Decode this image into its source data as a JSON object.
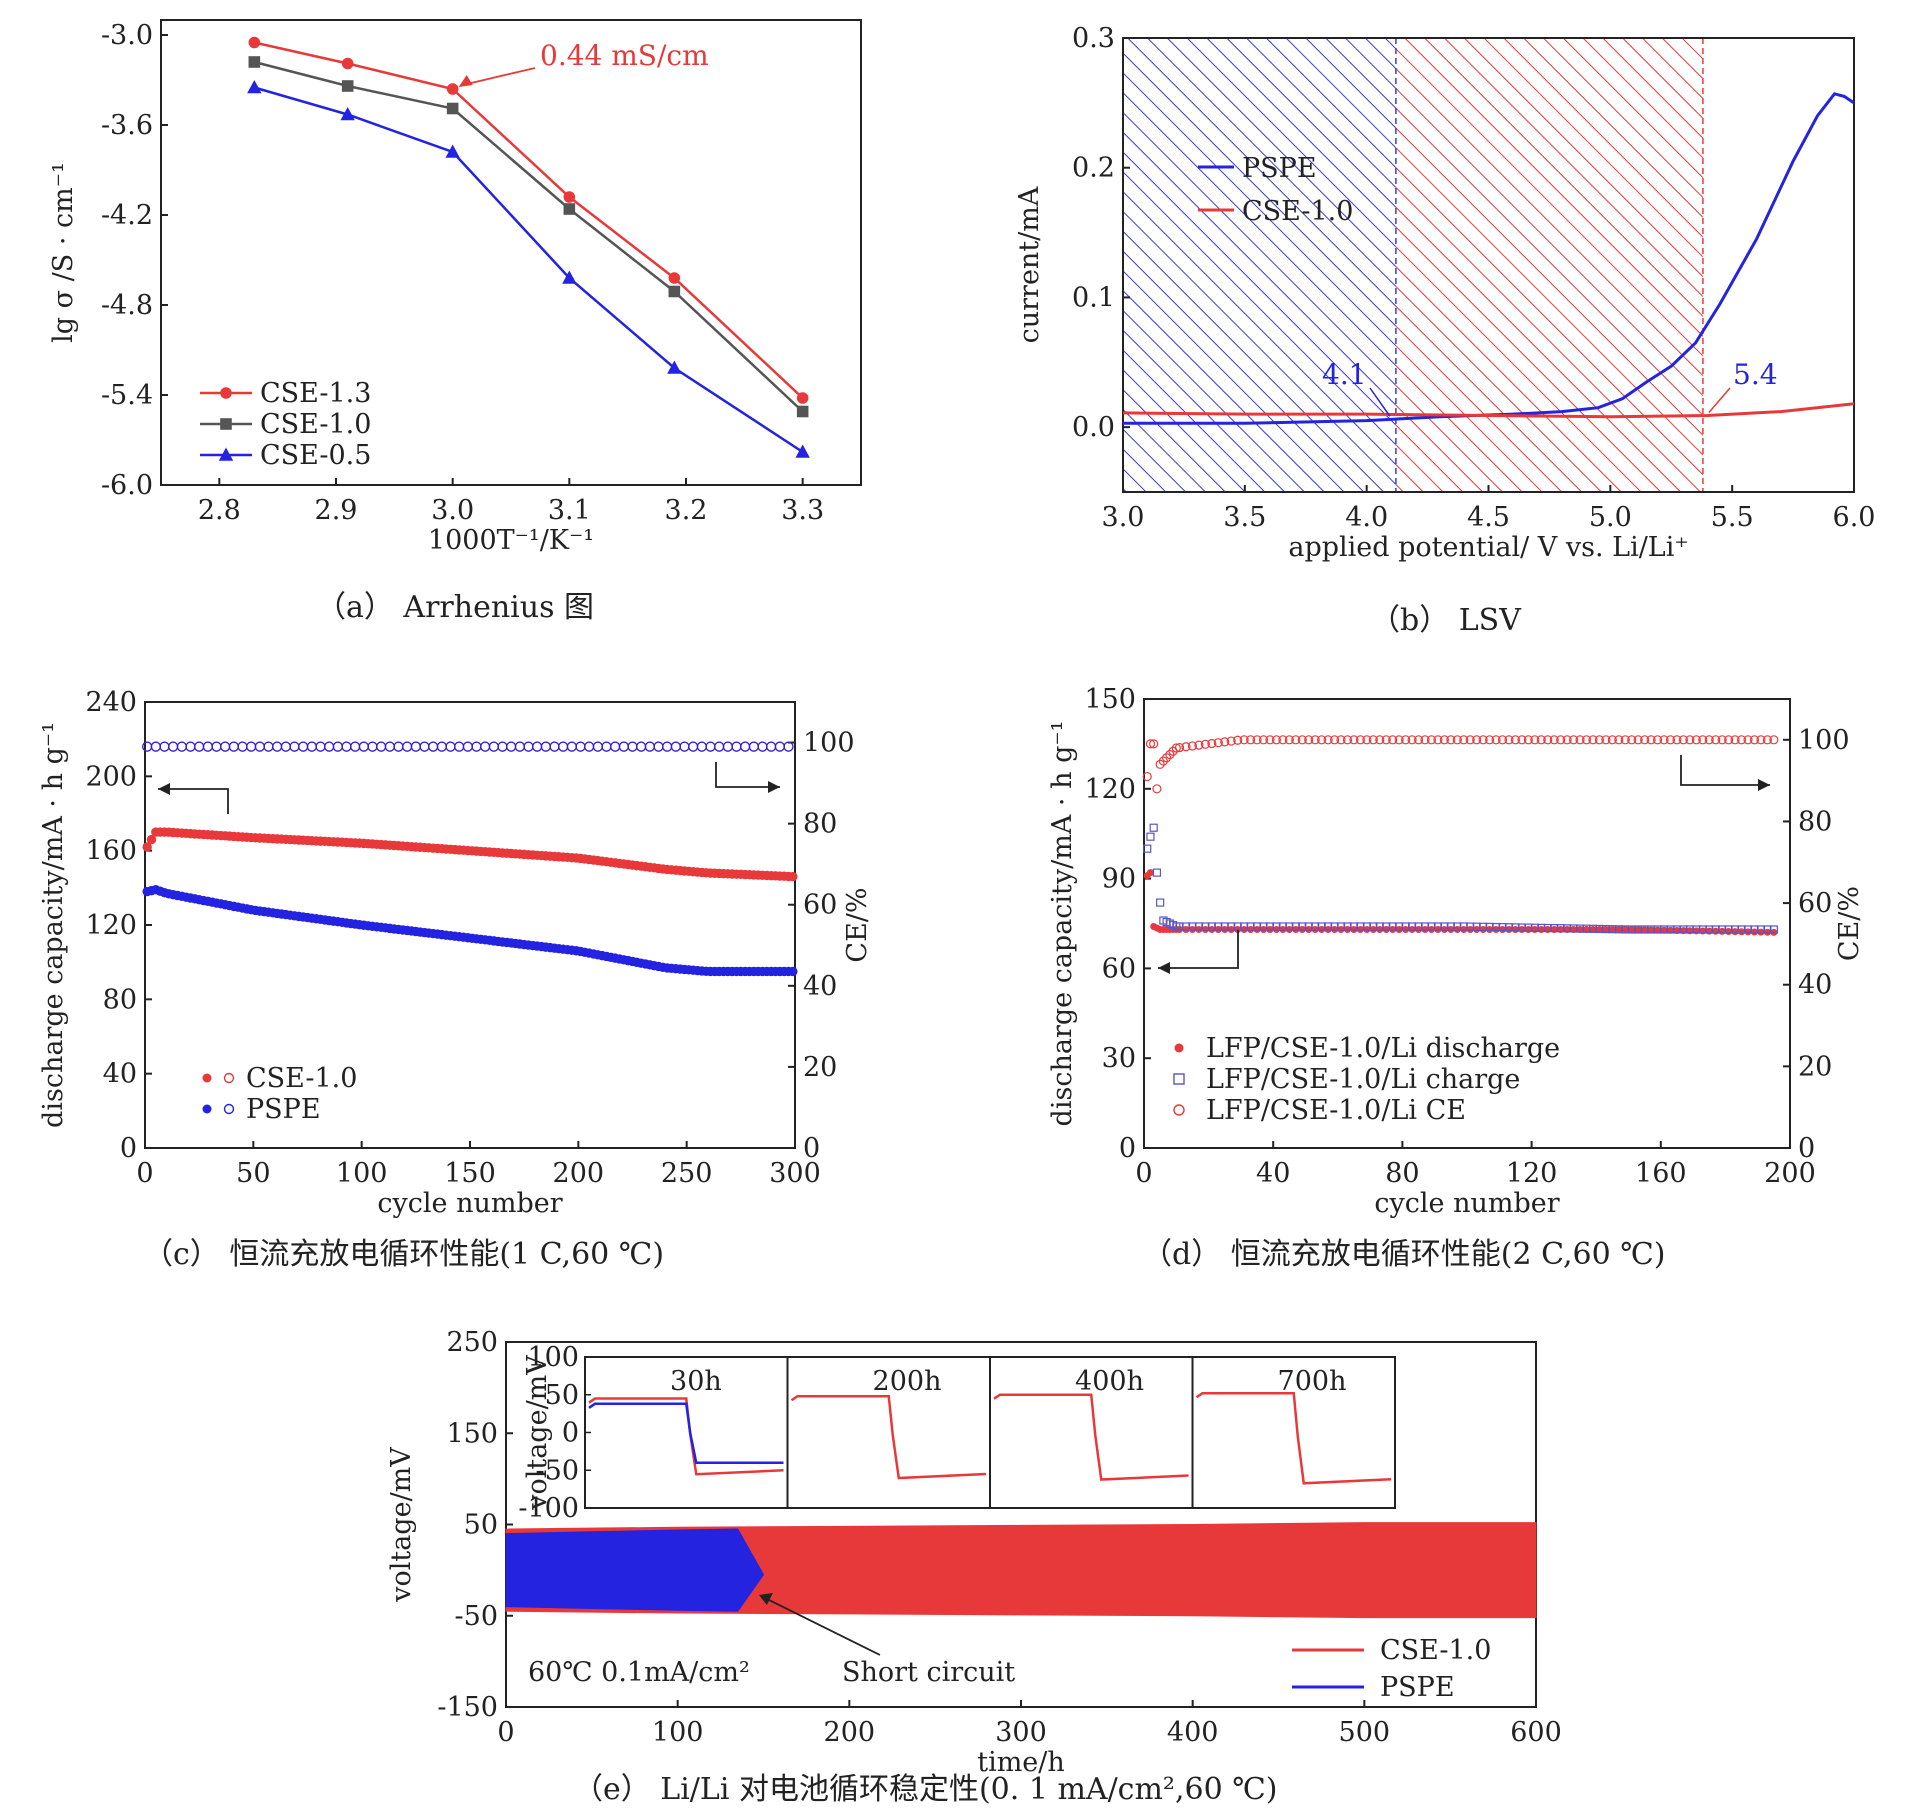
{
  "panels": {
    "a": {
      "caption": "（a）  Arrhenius 图",
      "chart_data": {
        "type": "line",
        "xlabel": "1000T⁻¹/K⁻¹",
        "ylabel": "lg σ /S · cm⁻¹",
        "xlim": [
          2.75,
          3.35
        ],
        "ylim": [
          -6.0,
          -2.9
        ],
        "xticks": [
          "2.8",
          "2.9",
          "3.0",
          "3.1",
          "3.2",
          "3.3"
        ],
        "yticks": [
          "-3.0",
          "-3.6",
          "-4.2",
          "-4.8",
          "-5.4",
          "-6.0"
        ],
        "x": [
          2.83,
          2.91,
          3.0,
          3.1,
          3.19,
          3.3
        ],
        "series": [
          {
            "name": "CSE-1.3",
            "color": "#e8393a",
            "marker": "circle",
            "values": [
              -3.05,
              -3.19,
              -3.36,
              -4.08,
              -4.62,
              -5.42
            ]
          },
          {
            "name": "CSE-1.0",
            "color": "#555555",
            "marker": "square",
            "values": [
              -3.18,
              -3.34,
              -3.49,
              -4.16,
              -4.71,
              -5.51
            ]
          },
          {
            "name": "CSE-0.5",
            "color": "#2323e0",
            "marker": "triangle",
            "values": [
              -3.35,
              -3.53,
              -3.78,
              -4.62,
              -5.22,
              -5.78
            ]
          }
        ],
        "annotation": {
          "text": "0.44 mS/cm",
          "color": "#e8393a",
          "x": 3.0,
          "y": -3.36
        },
        "legend": "bottom-left"
      }
    },
    "b": {
      "caption": "（b）  LSV",
      "chart_data": {
        "type": "line",
        "xlabel": "applied potential/ V vs. Li/Li⁺",
        "ylabel": "current/mA",
        "xlim": [
          3.0,
          6.0
        ],
        "ylim": [
          -0.05,
          0.3
        ],
        "xticks": [
          "3.0",
          "3.5",
          "4.0",
          "4.5",
          "5.0",
          "5.5",
          "6.0"
        ],
        "yticks": [
          "0.0",
          "0.1",
          "0.2",
          "0.3"
        ],
        "series": [
          {
            "name": "PSPE",
            "color": "#2323e0",
            "x": [
              3.0,
              3.5,
              4.0,
              4.1,
              4.3,
              4.6,
              4.8,
              4.95,
              5.05,
              5.15,
              5.25,
              5.35,
              5.45,
              5.6,
              5.75,
              5.85,
              5.92,
              5.96,
              6.0
            ],
            "values": [
              0.003,
              0.003,
              0.005,
              0.006,
              0.008,
              0.01,
              0.012,
              0.015,
              0.022,
              0.035,
              0.047,
              0.065,
              0.095,
              0.145,
              0.205,
              0.24,
              0.257,
              0.255,
              0.25
            ]
          },
          {
            "name": "CSE-1.0",
            "color": "#e8393a",
            "x": [
              3.0,
              3.5,
              4.0,
              4.5,
              5.0,
              5.4,
              5.7,
              6.0
            ],
            "values": [
              0.011,
              0.01,
              0.01,
              0.009,
              0.008,
              0.009,
              0.012,
              0.018
            ]
          }
        ],
        "annotations": [
          {
            "text": "4.1",
            "color": "#2323e0",
            "x": 4.12
          },
          {
            "text": "5.4",
            "color": "#2323e0",
            "x": 5.38
          }
        ],
        "legend": "upper-left"
      }
    },
    "c": {
      "caption": "（c）  恒流充放电循环性能(1 C,60 ℃)",
      "chart_data": {
        "type": "scatter",
        "xlabel": "cycle number",
        "ylabel": "discharge capacity/mA · h g⁻¹",
        "y2label": "CE/%",
        "xlim": [
          0,
          300
        ],
        "ylim": [
          0,
          240
        ],
        "y2lim": [
          0,
          110
        ],
        "xticks": [
          "0",
          "50",
          "100",
          "150",
          "200",
          "250",
          "300"
        ],
        "yticks": [
          "0",
          "40",
          "80",
          "120",
          "160",
          "200",
          "240"
        ],
        "y2ticks": [
          "0",
          "20",
          "40",
          "60",
          "80",
          "100"
        ],
        "series": [
          {
            "name": "CSE-1.0",
            "color": "#e8393a",
            "capacity": {
              "x": [
                1,
                5,
                10,
                50,
                100,
                150,
                200,
                240,
                260,
                300
              ],
              "y": [
                162,
                170,
                170,
                167,
                164,
                160,
                156,
                150,
                148,
                146
              ]
            },
            "ce_mean": 99
          },
          {
            "name": "PSPE",
            "color": "#2323e0",
            "capacity": {
              "x": [
                1,
                5,
                10,
                50,
                100,
                150,
                200,
                240,
                260,
                300
              ],
              "y": [
                138,
                139,
                137,
                128,
                120,
                113,
                106,
                97,
                95,
                95
              ]
            },
            "ce_mean": 99
          }
        ],
        "legend": "bottom-left"
      }
    },
    "d": {
      "caption": "（d）  恒流充放电循环性能(2 C,60 ℃)",
      "chart_data": {
        "type": "scatter",
        "xlabel": "cycle number",
        "ylabel": "discharge capacity/mA · h g⁻¹",
        "y2label": "CE/%",
        "xlim": [
          0,
          200
        ],
        "ylim": [
          0,
          150
        ],
        "y2lim": [
          0,
          110
        ],
        "xticks": [
          "0",
          "40",
          "80",
          "120",
          "160",
          "200"
        ],
        "yticks": [
          "0",
          "30",
          "60",
          "90",
          "120",
          "150"
        ],
        "y2ticks": [
          "0",
          "20",
          "40",
          "60",
          "80",
          "100"
        ],
        "series": [
          {
            "name": "LFP/CSE-1.0/Li discharge",
            "color": "#e8393a",
            "marker": "filled-circle",
            "x": [
              1,
              2,
              3,
              5,
              10,
              50,
              100,
              150,
              196
            ],
            "y": [
              91,
              92,
              74,
              73,
              73,
              73,
              73,
              73,
              72
            ]
          },
          {
            "name": "LFP/CSE-1.0/Li charge",
            "color": "#5555cc",
            "marker": "open-square",
            "x": [
              1,
              2,
              3,
              4,
              5,
              6,
              10,
              50,
              100,
              150,
              196
            ],
            "y": [
              100,
              104,
              107,
              92,
              82,
              76,
              74,
              74,
              74,
              73,
              73
            ]
          },
          {
            "name": "LFP/CSE-1.0/Li CE",
            "color": "#e8393a",
            "marker": "open-circle",
            "x": [
              1,
              2,
              3,
              4,
              5,
              10,
              30,
              100,
              196
            ],
            "y": [
              91,
              99,
              99,
              88,
              94,
              98,
              100,
              100,
              100
            ]
          }
        ],
        "legend": "bottom-left"
      }
    },
    "e": {
      "caption": "（e）  Li/Li 对电池循环稳定性(0. 1 mA/cm²,60 ℃)",
      "chart_data": {
        "type": "line",
        "xlabel": "time/h",
        "ylabel": "voltage/mV",
        "xlim": [
          0,
          600
        ],
        "ylim": [
          -150,
          250
        ],
        "xticks": [
          "0",
          "100",
          "200",
          "300",
          "400",
          "500",
          "600"
        ],
        "yticks": [
          "-150",
          "-50",
          "50",
          "150",
          "250"
        ],
        "series": [
          {
            "name": "CSE-1.0",
            "color": "#e8393a",
            "band": {
              "x": [
                0,
                100,
                200,
                300,
                400,
                500,
                600
              ],
              "upper": [
                45,
                47,
                48,
                49,
                50,
                52,
                52
              ],
              "lower": [
                -45,
                -47,
                -48,
                -49,
                -50,
                -52,
                -52
              ]
            }
          },
          {
            "name": "PSPE",
            "color": "#2323e0",
            "band": {
              "x": [
                0,
                50,
                100,
                135,
                150
              ],
              "upper": [
                40,
                42,
                44,
                45,
                -5
              ],
              "lower": [
                -40,
                -42,
                -44,
                -45,
                -5
              ]
            }
          }
        ],
        "annotations": [
          {
            "text": "60℃  0.1mA/cm²"
          },
          {
            "text": "Short circuit",
            "x": 145
          }
        ],
        "inset": {
          "ylabel": "voltage/mV",
          "ylim": [
            -100,
            100
          ],
          "yticks": [
            "100",
            "50",
            "0",
            "-50",
            "-100"
          ],
          "panels": [
            "30h",
            "200h",
            "400h",
            "700h"
          ],
          "cse_plateau": [
            [
              45,
              -50
            ],
            [
              48,
              -55
            ],
            [
              50,
              -57
            ],
            [
              52,
              -62
            ]
          ],
          "pspe_plateau": [
            [
              38,
              -40
            ]
          ]
        },
        "legend": "bottom-right"
      }
    }
  }
}
